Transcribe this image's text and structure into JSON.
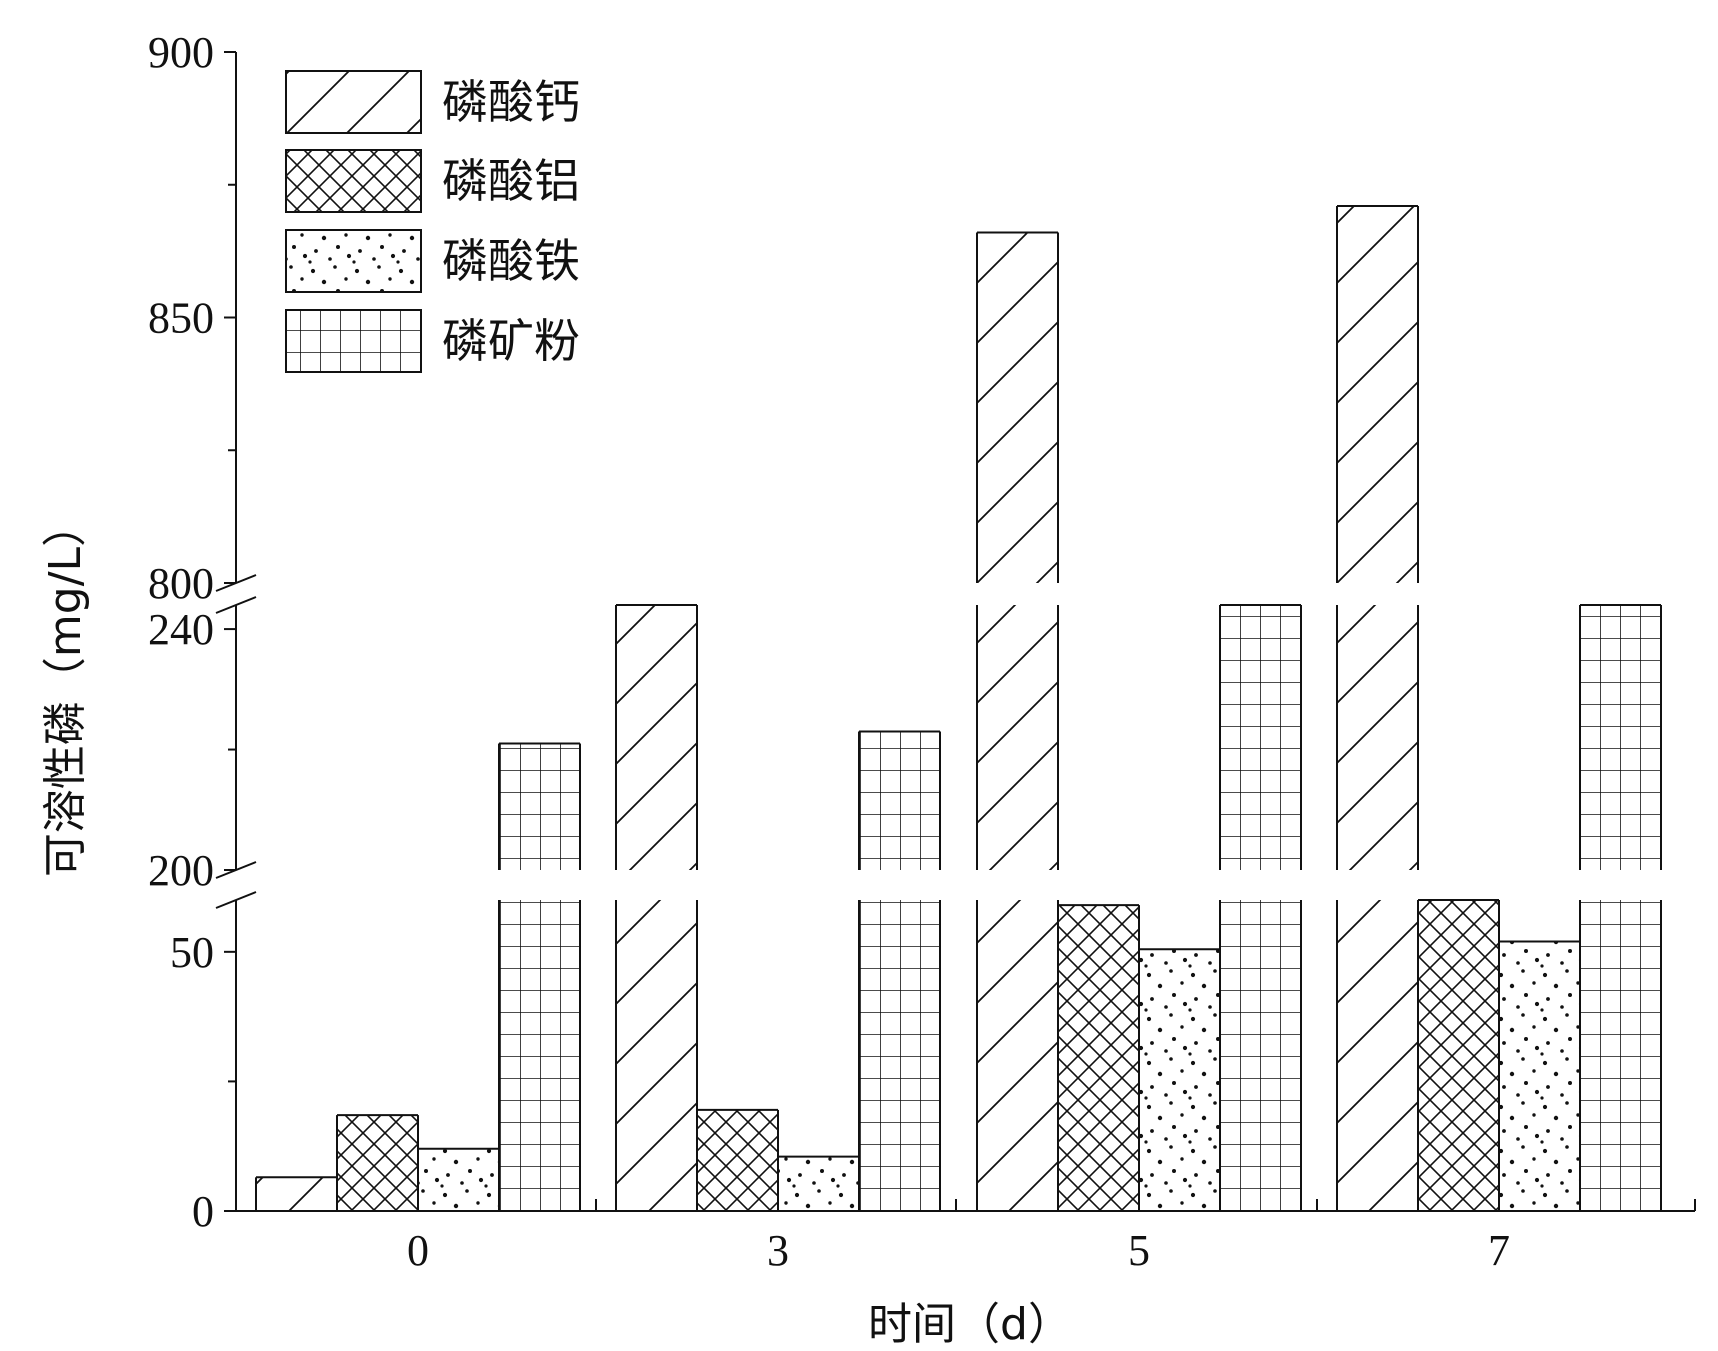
{
  "chart_data": {
    "type": "bar",
    "title": "",
    "xlabel": "时间（d）",
    "ylabel": "可溶性磷（mg/L）",
    "categories": [
      "0",
      "3",
      "5",
      "7"
    ],
    "series": [
      {
        "name": "磷酸钙",
        "pattern": "diagonal",
        "values": [
          6.5,
          244,
          866,
          871
        ]
      },
      {
        "name": "磷酸铝",
        "pattern": "crosshatch",
        "values": [
          18.5,
          19.5,
          59,
          60
        ]
      },
      {
        "name": "磷酸铁",
        "pattern": "dots",
        "values": [
          12,
          10.5,
          50.5,
          52
        ]
      },
      {
        "name": "磷矿粉",
        "pattern": "grid",
        "values": [
          221,
          223,
          244,
          244
        ]
      }
    ],
    "y_axis_segments": [
      {
        "range": [
          0,
          60
        ],
        "ticks": [
          0,
          50
        ],
        "minor_ticks": [
          25
        ]
      },
      {
        "range": [
          200,
          244
        ],
        "ticks": [
          200,
          240
        ],
        "minor_ticks": [
          220
        ]
      },
      {
        "range": [
          800,
          900
        ],
        "ticks": [
          800,
          850,
          900
        ],
        "minor_ticks": [
          825,
          875
        ]
      }
    ],
    "axis_breaks": [
      [
        60,
        200
      ],
      [
        244,
        800
      ]
    ],
    "legend_position": "top-left",
    "grid": false,
    "colors": {
      "stroke": "#111111",
      "background": "#ffffff"
    }
  }
}
